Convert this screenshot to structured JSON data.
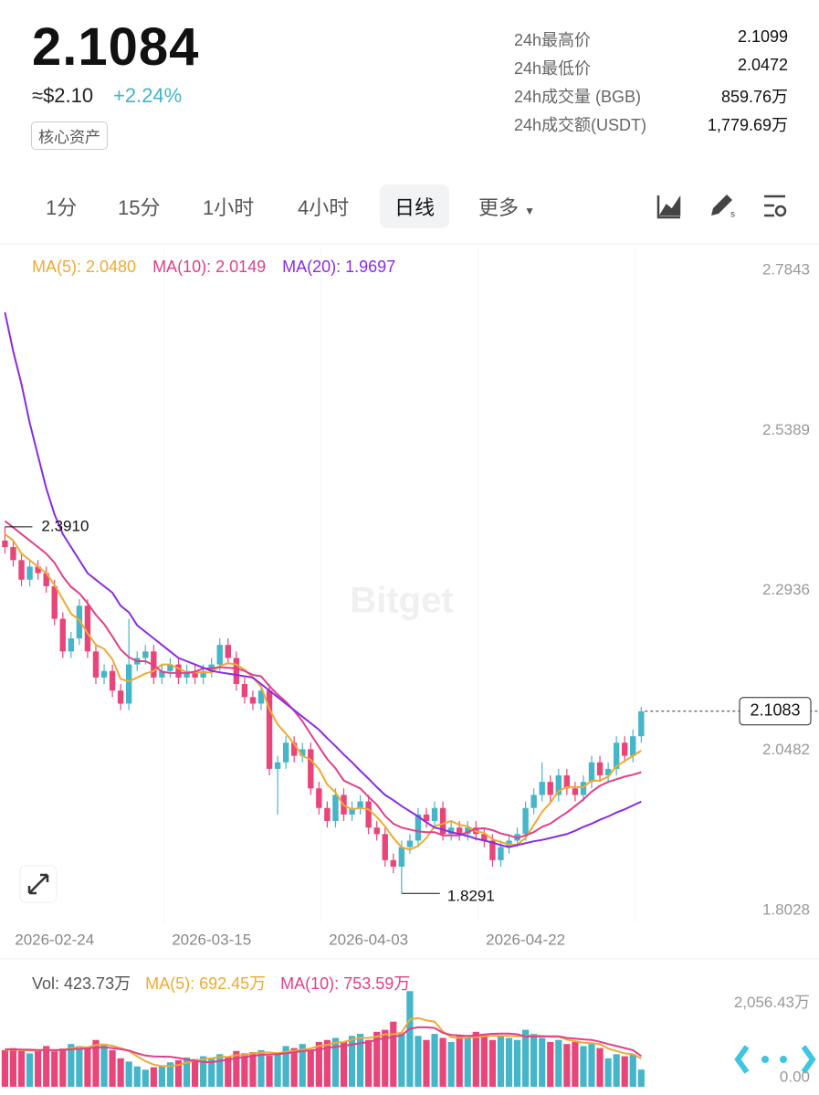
{
  "header": {
    "price": "2.1084",
    "usd": "≈$2.10",
    "change": "+2.24%",
    "tag": "核心资产",
    "stats": [
      {
        "label": "24h最高价",
        "value": "2.1099"
      },
      {
        "label": "24h最低价",
        "value": "2.0472"
      },
      {
        "label": "24h成交量 (BGB)",
        "value": "859.76万"
      },
      {
        "label": "24h成交额(USDT)",
        "value": "1,779.69万"
      }
    ]
  },
  "tabs": [
    "1分",
    "15分",
    "1小时",
    "4小时",
    "日线",
    "更多"
  ],
  "active_tab": 4,
  "watermark": "Bitget",
  "chart_data": [
    {
      "type": "candlestick",
      "up_color": "#45b5c9",
      "down_color": "#e8457a",
      "xlim": [
        -0.6,
        88.9
      ],
      "ylim": [
        1.7846,
        2.8207
      ],
      "yticks": [
        2.7843,
        2.5389,
        2.2936,
        2.0482,
        1.8028
      ],
      "xticks": [
        {
          "value": 6,
          "label": "2026-02-24"
        },
        {
          "value": 25,
          "label": "2026-03-15"
        },
        {
          "value": 44,
          "label": "2026-04-03"
        },
        {
          "value": 63,
          "label": "2026-04-22"
        }
      ],
      "max_label": "2.3910",
      "min_label": "1.8291",
      "open": [
        2.37,
        2.36,
        2.34,
        2.31,
        2.33,
        2.32,
        2.3,
        2.25,
        2.2,
        2.22,
        2.27,
        2.2,
        2.16,
        2.17,
        2.14,
        2.12,
        2.18,
        2.19,
        2.2,
        2.16,
        2.17,
        2.18,
        2.16,
        2.17,
        2.16,
        2.17,
        2.18,
        2.21,
        2.19,
        2.15,
        2.13,
        2.12,
        2.14,
        2.02,
        2.03,
        2.06,
        2.04,
        2.05,
        1.99,
        1.96,
        1.94,
        1.98,
        1.95,
        1.96,
        1.97,
        1.93,
        1.92,
        1.88,
        1.87,
        1.9,
        1.91,
        1.95,
        1.94,
        1.96,
        1.92,
        1.93,
        1.92,
        1.93,
        1.92,
        1.91,
        1.88,
        1.9,
        1.91,
        1.92,
        1.96,
        1.98,
        2.0,
        1.98,
        2.01,
        1.99,
        1.98,
        2.0,
        2.03,
        2.01,
        2.02,
        2.06,
        2.04,
        2.07
      ],
      "high": [
        2.391,
        2.37,
        2.35,
        2.34,
        2.34,
        2.33,
        2.31,
        2.26,
        2.23,
        2.28,
        2.28,
        2.21,
        2.18,
        2.18,
        2.15,
        2.25,
        2.2,
        2.21,
        2.21,
        2.18,
        2.19,
        2.19,
        2.18,
        2.18,
        2.18,
        2.19,
        2.22,
        2.22,
        2.2,
        2.16,
        2.14,
        2.15,
        2.15,
        2.04,
        2.07,
        2.07,
        2.06,
        2.06,
        2.0,
        1.97,
        1.99,
        1.99,
        1.97,
        1.98,
        1.98,
        1.94,
        1.93,
        1.89,
        1.91,
        1.92,
        1.96,
        1.96,
        1.97,
        1.97,
        1.94,
        1.94,
        1.94,
        1.94,
        1.93,
        1.92,
        1.91,
        1.92,
        1.93,
        1.97,
        1.99,
        2.03,
        2.01,
        2.02,
        2.02,
        2.0,
        2.01,
        2.04,
        2.04,
        2.03,
        2.07,
        2.07,
        2.08,
        2.115
      ],
      "low": [
        2.35,
        2.33,
        2.3,
        2.3,
        2.31,
        2.29,
        2.24,
        2.19,
        2.19,
        2.21,
        2.19,
        2.15,
        2.15,
        2.13,
        2.11,
        2.11,
        2.17,
        2.18,
        2.15,
        2.15,
        2.16,
        2.15,
        2.15,
        2.15,
        2.15,
        2.16,
        2.17,
        2.18,
        2.14,
        2.12,
        2.11,
        2.11,
        2.01,
        1.95,
        2.02,
        2.03,
        2.03,
        1.98,
        1.95,
        1.93,
        1.93,
        1.94,
        1.94,
        1.95,
        1.92,
        1.91,
        1.87,
        1.86,
        1.8291,
        1.89,
        1.9,
        1.93,
        1.93,
        1.91,
        1.91,
        1.91,
        1.91,
        1.91,
        1.9,
        1.87,
        1.87,
        1.89,
        1.9,
        1.91,
        1.95,
        1.97,
        1.97,
        1.97,
        1.98,
        1.97,
        1.97,
        1.99,
        2.0,
        2.0,
        2.01,
        2.03,
        2.03,
        2.06
      ],
      "close": [
        2.36,
        2.34,
        2.31,
        2.33,
        2.32,
        2.3,
        2.25,
        2.2,
        2.22,
        2.27,
        2.2,
        2.16,
        2.17,
        2.14,
        2.12,
        2.18,
        2.19,
        2.2,
        2.16,
        2.17,
        2.18,
        2.16,
        2.17,
        2.16,
        2.17,
        2.18,
        2.21,
        2.19,
        2.15,
        2.13,
        2.12,
        2.14,
        2.02,
        2.03,
        2.06,
        2.04,
        2.05,
        1.99,
        1.96,
        1.94,
        1.98,
        1.95,
        1.96,
        1.97,
        1.93,
        1.92,
        1.88,
        1.87,
        1.9,
        1.91,
        1.95,
        1.94,
        1.96,
        1.92,
        1.93,
        1.92,
        1.93,
        1.92,
        1.91,
        1.88,
        1.9,
        1.91,
        1.92,
        1.96,
        1.98,
        2.0,
        1.98,
        2.01,
        1.99,
        1.98,
        2.0,
        2.03,
        2.01,
        2.02,
        2.06,
        2.04,
        2.07,
        2.1083
      ],
      "series": [
        {
          "name": "MA(5): 2.0480",
          "color": "#eeaa33",
          "values": [
            2.38,
            2.37,
            2.35,
            2.34,
            2.33,
            2.32,
            2.302,
            2.28,
            2.258,
            2.248,
            2.228,
            2.21,
            2.204,
            2.188,
            2.158,
            2.154,
            2.16,
            2.166,
            2.17,
            2.18,
            2.18,
            2.174,
            2.168,
            2.168,
            2.168,
            2.168,
            2.178,
            2.182,
            2.18,
            2.172,
            2.16,
            2.146,
            2.112,
            2.088,
            2.074,
            2.058,
            2.04,
            2.034,
            2.02,
            1.996,
            1.984,
            1.964,
            1.958,
            1.96,
            1.958,
            1.946,
            1.932,
            1.914,
            1.9,
            1.896,
            1.902,
            1.914,
            1.932,
            1.936,
            1.94,
            1.934,
            1.932,
            1.924,
            1.922,
            1.912,
            1.908,
            1.904,
            1.904,
            1.914,
            1.934,
            1.954,
            1.968,
            1.986,
            1.992,
            1.992,
            1.992,
            2.002,
            2.002,
            2.008,
            2.024,
            2.032,
            2.04,
            2.048
          ]
        },
        {
          "name": "MA(10): 2.0149",
          "color": "#e0408a",
          "values": [
            2.4,
            2.39,
            2.38,
            2.37,
            2.36,
            2.35,
            2.336,
            2.315,
            2.299,
            2.289,
            2.274,
            2.256,
            2.242,
            2.223,
            2.203,
            2.191,
            2.185,
            2.185,
            2.179,
            2.169,
            2.167,
            2.167,
            2.167,
            2.169,
            2.174,
            2.174,
            2.176,
            2.175,
            2.174,
            2.17,
            2.164,
            2.162,
            2.147,
            2.134,
            2.123,
            2.109,
            2.093,
            2.073,
            2.054,
            2.035,
            2.021,
            2.002,
            1.996,
            1.99,
            1.977,
            1.965,
            1.948,
            1.936,
            1.93,
            1.927,
            1.924,
            1.923,
            1.923,
            1.918,
            1.918,
            1.918,
            1.923,
            1.928,
            1.929,
            1.926,
            1.921,
            1.918,
            1.914,
            1.918,
            1.923,
            1.931,
            1.936,
            1.945,
            1.953,
            1.963,
            1.973,
            1.985,
            1.994,
            2.0,
            2.004,
            2.008,
            2.011,
            2.0149
          ]
        },
        {
          "name": "MA(20): 1.9697",
          "color": "#8a2be2",
          "values": [
            2.72,
            2.66,
            2.61,
            2.55,
            2.5,
            2.45,
            2.41,
            2.38,
            2.36,
            2.34,
            2.32,
            2.31,
            2.3,
            2.29,
            2.27,
            2.26,
            2.24,
            2.23,
            2.22,
            2.21,
            2.2,
            2.19,
            2.185,
            2.18,
            2.175,
            2.17,
            2.168,
            2.166,
            2.164,
            2.162,
            2.16,
            2.15,
            2.14,
            2.13,
            2.12,
            2.11,
            2.1,
            2.09,
            2.08,
            2.067,
            2.055,
            2.042,
            2.03,
            2.017,
            2.005,
            1.992,
            1.98,
            1.972,
            1.963,
            1.955,
            1.947,
            1.938,
            1.93,
            1.927,
            1.923,
            1.92,
            1.917,
            1.913,
            1.91,
            1.907,
            1.903,
            1.9,
            1.903,
            1.906,
            1.909,
            1.911,
            1.914,
            1.917,
            1.92,
            1.925,
            1.931,
            1.936,
            1.942,
            1.947,
            1.953,
            1.958,
            1.964,
            1.9697
          ]
        }
      ]
    },
    {
      "type": "bar",
      "xlim": [
        -0.6,
        88.9
      ],
      "ylim": [
        0,
        2400
      ],
      "yticks": [
        {
          "value": 2056.43,
          "label": "2,056.43万"
        },
        {
          "value": 0,
          "label": "0.00"
        }
      ],
      "series": [
        {
          "name": "Vol: 423.73万",
          "values": [
            900,
            950,
            880,
            820,
            900,
            1000,
            870,
            940,
            1050,
            1000,
            980,
            1150,
            1020,
            900,
            700,
            620,
            500,
            420,
            480,
            520,
            600,
            650,
            720,
            680,
            750,
            700,
            800,
            750,
            880,
            820,
            850,
            900,
            760,
            800,
            1000,
            950,
            1050,
            900,
            1100,
            1150,
            1200,
            1100,
            1250,
            1300,
            1150,
            1350,
            1400,
            1600,
            1300,
            2350,
            1250,
            1150,
            1300,
            1200,
            1100,
            1250,
            1200,
            1350,
            1300,
            1150,
            1250,
            1200,
            1150,
            1400,
            1300,
            1200,
            1100,
            1150,
            1050,
            1100,
            1000,
            1050,
            950,
            700,
            800,
            750,
            800,
            423.73
          ]
        },
        {
          "name": "MA(5): 692.45万",
          "color": "#eeaa33",
          "values": [
            900,
            910,
            900,
            890,
            890,
            910,
            894,
            906,
            952,
            972,
            968,
            1024,
            1040,
            1010,
            950,
            878,
            748,
            628,
            544,
            508,
            508,
            534,
            594,
            634,
            680,
            700,
            730,
            736,
            776,
            780,
            820,
            840,
            842,
            826,
            862,
            882,
            912,
            940,
            1000,
            1030,
            1080,
            1100,
            1160,
            1200,
            1200,
            1230,
            1290,
            1290,
            1330,
            1650,
            1690,
            1630,
            1600,
            1360,
            1220,
            1200,
            1210,
            1220,
            1240,
            1250,
            1250,
            1250,
            1240,
            1250,
            1260,
            1250,
            1230,
            1230,
            1160,
            1120,
            1080,
            1070,
            1050,
            940,
            880,
            820,
            800,
            692.45
          ]
        },
        {
          "name": "MA(10): 753.59万",
          "color": "#e0408a",
          "values": [
            920,
            920,
            915,
            910,
            905,
            905,
            902,
            903,
            921,
            931,
            939,
            967,
            970,
            950,
            921,
            893,
            821,
            767,
            748,
            740,
            738,
            706,
            671,
            631,
            612,
            604,
            632,
            665,
            705,
            730,
            760,
            785,
            789,
            801,
            821,
            851,
            876,
            891,
            913,
            956,
            981,
            1006,
            1036,
            1070,
            1100,
            1155,
            1195,
            1225,
            1265,
            1425,
            1460,
            1460,
            1445,
            1325,
            1275,
            1260,
            1250,
            1255,
            1285,
            1300,
            1305,
            1305,
            1290,
            1235,
            1240,
            1235,
            1240,
            1240,
            1200,
            1185,
            1165,
            1150,
            1105,
            1050,
            1000,
            950,
            900,
            753.59
          ]
        }
      ]
    }
  ]
}
